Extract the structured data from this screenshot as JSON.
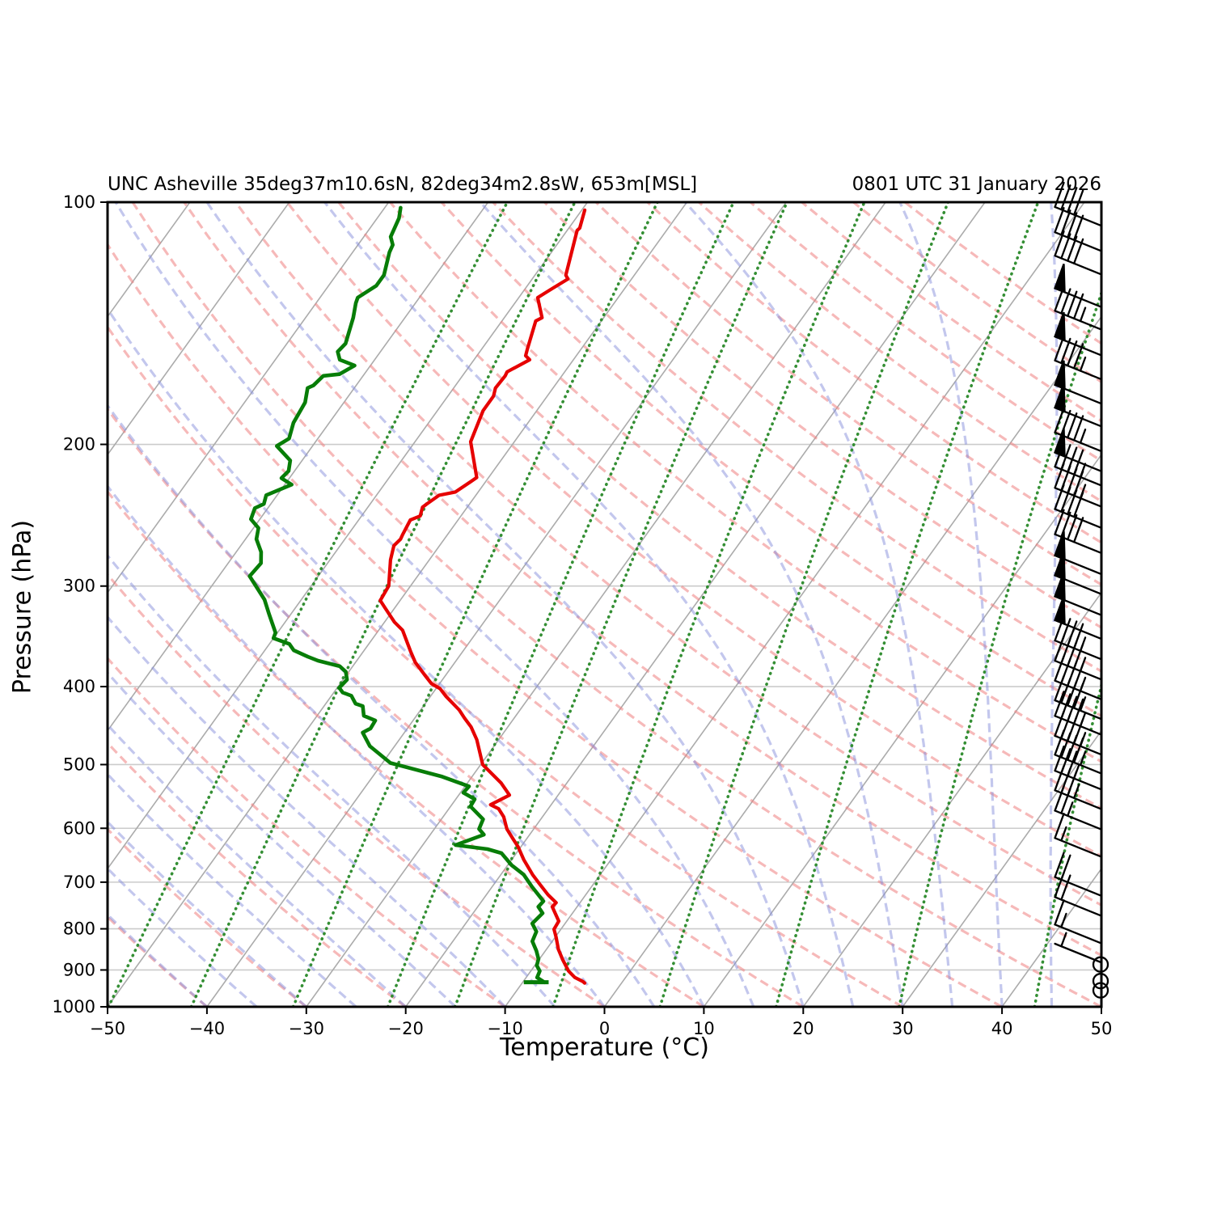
{
  "title_left": "UNC Asheville 35deg37m10.6sN, 82deg34m2.8sW, 653m[MSL]",
  "title_right": "0801 UTC 31 January 2026",
  "x_axis": {
    "label": "Temperature (°C)",
    "ticks": [
      -50,
      -40,
      -30,
      -20,
      -10,
      0,
      10,
      20,
      30,
      40,
      50
    ]
  },
  "y_axis": {
    "label": "Pressure (hPa)",
    "ticks": [
      100,
      200,
      300,
      400,
      500,
      600,
      700,
      800,
      900,
      1000
    ]
  },
  "chart_data": {
    "type": "line",
    "subtype": "skew-t-log-p",
    "station": "UNC Asheville",
    "valid_time": "0801 UTC 31 January 2026",
    "xlabel": "Temperature (°C)",
    "ylabel": "Pressure (hPa)",
    "xlim": [
      -50,
      50
    ],
    "ylim": [
      1000,
      100
    ],
    "colors": {
      "temperature": "#e60000",
      "dewpoint": "#077d07",
      "isotherm": "#ababab",
      "isobar": "#cbcbcb",
      "dry_adiabat": "#f08080",
      "moist_adiabat": "#8890dd",
      "mixing_ratio": "#2a8a2a",
      "barb": "#000000"
    },
    "background": {
      "isotherms_c": [
        -120,
        -110,
        -100,
        -90,
        -80,
        -70,
        -60,
        -50,
        -40,
        -30,
        -20,
        -10,
        0,
        10,
        20,
        30,
        40
      ],
      "dry_adiabats_c": [
        -40,
        -30,
        -20,
        -10,
        0,
        10,
        20,
        30,
        40,
        50,
        60,
        70,
        80,
        90,
        100,
        110,
        120,
        130,
        140,
        150,
        160,
        170,
        180,
        190,
        200
      ],
      "moist_adiabats_c": [
        -40,
        -35,
        -30,
        -25,
        -20,
        -15,
        -10,
        -5,
        0,
        5,
        10,
        15,
        20,
        25,
        30,
        35,
        40,
        45,
        50
      ],
      "mixing_ratio_g_kg": [
        0.04,
        0.1,
        0.28,
        0.67,
        1.19,
        2.6,
        5.7,
        12.5,
        27,
        60
      ]
    },
    "series": [
      {
        "name": "temperature",
        "units": [
          "hPa",
          "degC"
        ],
        "points": [
          [
            102.3,
            -59.7
          ],
          [
            107.7,
            -58.9
          ],
          [
            108.4,
            -59.0
          ],
          [
            123.2,
            -56.9
          ],
          [
            124.6,
            -56.4
          ],
          [
            128.1,
            -57.3
          ],
          [
            131.4,
            -58.1
          ],
          [
            139.2,
            -56.2
          ],
          [
            140.5,
            -56.6
          ],
          [
            152.3,
            -55.4
          ],
          [
            155.2,
            -55.1
          ],
          [
            157.0,
            -54.4
          ],
          [
            162.5,
            -55.8
          ],
          [
            164.4,
            -55.7
          ],
          [
            170.2,
            -55.8
          ],
          [
            174.2,
            -55.4
          ],
          [
            181.6,
            -55.4
          ],
          [
            198.5,
            -54.4
          ],
          [
            219.9,
            -51.2
          ],
          [
            222.5,
            -51.5
          ],
          [
            229.2,
            -52.3
          ],
          [
            231.3,
            -53.7
          ],
          [
            237.2,
            -54.3
          ],
          [
            239.4,
            -54.5
          ],
          [
            245.5,
            -54.1
          ],
          [
            248.3,
            -54.8
          ],
          [
            259.3,
            -54.5
          ],
          [
            262.3,
            -54.4
          ],
          [
            267.2,
            -54.6
          ],
          [
            278.4,
            -53.9
          ],
          [
            299.9,
            -52.2
          ],
          [
            312.6,
            -52.0
          ],
          [
            319.2,
            -51.0
          ],
          [
            332.6,
            -49.0
          ],
          [
            340.4,
            -47.6
          ],
          [
            362.2,
            -45.2
          ],
          [
            373.1,
            -44.0
          ],
          [
            387.8,
            -42.0
          ],
          [
            396.8,
            -40.8
          ],
          [
            402.3,
            -39.6
          ],
          [
            411.6,
            -38.4
          ],
          [
            427.8,
            -36.1
          ],
          [
            437.7,
            -35.0
          ],
          [
            448.9,
            -33.7
          ],
          [
            465.6,
            -32.2
          ],
          [
            500.0,
            -29.8
          ],
          [
            527.2,
            -26.6
          ],
          [
            545.6,
            -24.9
          ],
          [
            560.9,
            -26.1
          ],
          [
            567.4,
            -25.0
          ],
          [
            580.7,
            -23.9
          ],
          [
            601.2,
            -22.7
          ],
          [
            619.4,
            -21.3
          ],
          [
            632.4,
            -20.3
          ],
          [
            656.1,
            -18.8
          ],
          [
            685.2,
            -16.8
          ],
          [
            702.7,
            -15.5
          ],
          [
            725.7,
            -13.8
          ],
          [
            742.5,
            -12.4
          ],
          [
            751.1,
            -12.5
          ],
          [
            782.6,
            -10.8
          ],
          [
            800.9,
            -10.7
          ],
          [
            819.6,
            -9.9
          ],
          [
            848.4,
            -8.8
          ],
          [
            874.2,
            -7.6
          ],
          [
            902.8,
            -6.2
          ],
          [
            919.7,
            -5.1
          ],
          [
            930.3,
            -4.0
          ],
          [
            934.5,
            -3.7
          ]
        ]
      },
      {
        "name": "dewpoint",
        "units": [
          "hPa",
          "degC"
        ],
        "points": [
          [
            101.6,
            -78.4
          ],
          [
            104.7,
            -77.8
          ],
          [
            110.4,
            -77.3
          ],
          [
            113.0,
            -76.5
          ],
          [
            115.4,
            -76.3
          ],
          [
            123.2,
            -75.2
          ],
          [
            127.0,
            -75.2
          ],
          [
            131.4,
            -76.2
          ],
          [
            133.5,
            -76.0
          ],
          [
            139.2,
            -75.2
          ],
          [
            149.9,
            -74.1
          ],
          [
            153.4,
            -74.3
          ],
          [
            157.0,
            -73.5
          ],
          [
            159.6,
            -71.6
          ],
          [
            163.6,
            -72.5
          ],
          [
            164.4,
            -74.0
          ],
          [
            169.0,
            -74.3
          ],
          [
            170.2,
            -74.7
          ],
          [
            177.4,
            -73.9
          ],
          [
            188.0,
            -73.6
          ],
          [
            196.7,
            -72.9
          ],
          [
            200.9,
            -73.6
          ],
          [
            209.4,
            -71.2
          ],
          [
            215.8,
            -70.6
          ],
          [
            220.3,
            -70.8
          ],
          [
            224.4,
            -69.3
          ],
          [
            231.3,
            -71.1
          ],
          [
            237.2,
            -70.7
          ],
          [
            240.0,
            -71.3
          ],
          [
            247.7,
            -70.9
          ],
          [
            254.1,
            -69.5
          ],
          [
            262.3,
            -68.9
          ],
          [
            272.1,
            -67.5
          ],
          [
            281.0,
            -66.7
          ],
          [
            291.6,
            -66.9
          ],
          [
            311.9,
            -63.7
          ],
          [
            325.0,
            -62.2
          ],
          [
            342.8,
            -60.2
          ],
          [
            348.3,
            -60.0
          ],
          [
            354.0,
            -58.0
          ],
          [
            360.5,
            -57.1
          ],
          [
            367.2,
            -55.2
          ],
          [
            371.4,
            -53.9
          ],
          [
            377.4,
            -51.3
          ],
          [
            383.4,
            -50.3
          ],
          [
            392.2,
            -49.6
          ],
          [
            401.3,
            -49.8
          ],
          [
            406.9,
            -49.1
          ],
          [
            410.6,
            -48.0
          ],
          [
            420.1,
            -47.0
          ],
          [
            423.0,
            -46.1
          ],
          [
            434.8,
            -45.3
          ],
          [
            440.8,
            -43.8
          ],
          [
            450.9,
            -43.7
          ],
          [
            456.2,
            -44.2
          ],
          [
            474.2,
            -42.5
          ],
          [
            497.7,
            -39.2
          ],
          [
            517.6,
            -33.0
          ],
          [
            532.1,
            -29.6
          ],
          [
            542.0,
            -29.7
          ],
          [
            552.1,
            -28.1
          ],
          [
            563.6,
            -28.0
          ],
          [
            584.7,
            -25.8
          ],
          [
            601.2,
            -25.5
          ],
          [
            611.0,
            -24.6
          ],
          [
            629.5,
            -26.7
          ],
          [
            636.8,
            -23.2
          ],
          [
            644.2,
            -21.5
          ],
          [
            666.9,
            -19.6
          ],
          [
            685.2,
            -17.7
          ],
          [
            709.2,
            -16.0
          ],
          [
            739.1,
            -13.8
          ],
          [
            751.1,
            -13.9
          ],
          [
            765.1,
            -13.0
          ],
          [
            788.0,
            -13.3
          ],
          [
            806.4,
            -12.3
          ],
          [
            829.1,
            -12.0
          ],
          [
            852.1,
            -10.9
          ],
          [
            872.2,
            -10.1
          ],
          [
            888.6,
            -9.8
          ],
          [
            902.8,
            -9.1
          ],
          [
            919.7,
            -8.9
          ],
          [
            932.4,
            -7.8
          ]
        ]
      }
    ],
    "surface_dewpoint_tick": {
      "p": 932,
      "t_from": -9.9,
      "t_to": -7.4
    },
    "wind_barbs": [
      {
        "p": 107,
        "kt": 40
      },
      {
        "p": 115,
        "kt": 40
      },
      {
        "p": 123,
        "kt": 40
      },
      {
        "p": 135,
        "kt": 50
      },
      {
        "p": 144,
        "kt": 45
      },
      {
        "p": 155,
        "kt": 50
      },
      {
        "p": 166,
        "kt": 45
      },
      {
        "p": 178,
        "kt": 50
      },
      {
        "p": 190,
        "kt": 50
      },
      {
        "p": 204,
        "kt": 45
      },
      {
        "p": 216,
        "kt": 50
      },
      {
        "p": 225,
        "kt": 45
      },
      {
        "p": 239,
        "kt": 45
      },
      {
        "p": 254,
        "kt": 40
      },
      {
        "p": 273,
        "kt": 40
      },
      {
        "p": 290,
        "kt": 50
      },
      {
        "p": 307,
        "kt": 50
      },
      {
        "p": 326,
        "kt": 50
      },
      {
        "p": 349,
        "kt": 50
      },
      {
        "p": 370,
        "kt": 45
      },
      {
        "p": 392,
        "kt": 45
      },
      {
        "p": 415,
        "kt": 45
      },
      {
        "p": 439,
        "kt": 45
      },
      {
        "p": 459,
        "kt": 45
      },
      {
        "p": 486,
        "kt": 45
      },
      {
        "p": 513,
        "kt": 45
      },
      {
        "p": 537,
        "kt": 35
      },
      {
        "p": 568,
        "kt": 35
      },
      {
        "p": 602,
        "kt": 25
      },
      {
        "p": 651,
        "kt": 15
      },
      {
        "p": 728,
        "kt": 20
      },
      {
        "p": 771,
        "kt": 20
      },
      {
        "p": 834,
        "kt": 15
      },
      {
        "p": 881,
        "kt": 5
      },
      {
        "p": 886,
        "kt": 0
      },
      {
        "p": 929,
        "kt": 0
      },
      {
        "p": 954,
        "kt": 0
      }
    ]
  }
}
